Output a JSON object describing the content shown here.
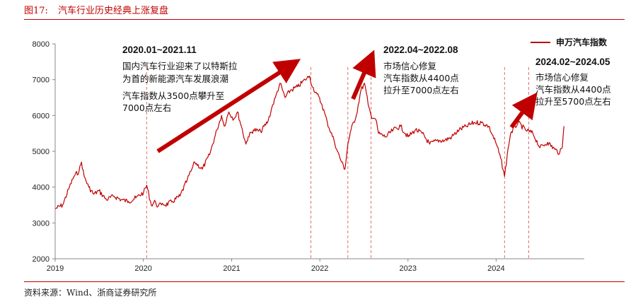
{
  "figure": {
    "number": "图17:",
    "title": "汽车行业历史经典上涨复盘",
    "source": "资料来源：Wind、浙商证券研究所"
  },
  "colors": {
    "line": "#c00000",
    "arrow": "#c00000",
    "axis": "#888888",
    "text": "#222222"
  },
  "chart_data": {
    "type": "line",
    "title": "",
    "xlabel": "",
    "ylabel": "",
    "ylim": [
      2000,
      8000
    ],
    "yticks": [
      2000,
      3000,
      4000,
      5000,
      6000,
      7000,
      8000
    ],
    "xlim": [
      "2019-01-01",
      "2024-12-31"
    ],
    "xticks": [
      "2019",
      "2020",
      "2021",
      "2022",
      "2023",
      "2024"
    ],
    "grid": false,
    "legend_position": "top-right",
    "series": [
      {
        "name": "申万汽车指数",
        "x": [
          "2019-01-02",
          "2019-02-01",
          "2019-03-01",
          "2019-03-20",
          "2019-04-10",
          "2019-04-20",
          "2019-05-01",
          "2019-05-20",
          "2019-06-10",
          "2019-07-01",
          "2019-08-01",
          "2019-09-01",
          "2019-10-01",
          "2019-11-01",
          "2019-12-01",
          "2020-01-02",
          "2020-01-15",
          "2020-02-03",
          "2020-02-20",
          "2020-03-01",
          "2020-03-20",
          "2020-04-01",
          "2020-05-01",
          "2020-06-01",
          "2020-07-01",
          "2020-07-20",
          "2020-08-01",
          "2020-09-01",
          "2020-10-01",
          "2020-11-01",
          "2020-11-20",
          "2020-12-01",
          "2020-12-20",
          "2021-01-10",
          "2021-01-25",
          "2021-02-10",
          "2021-03-01",
          "2021-03-10",
          "2021-04-01",
          "2021-05-01",
          "2021-06-01",
          "2021-06-20",
          "2021-07-01",
          "2021-07-20",
          "2021-08-10",
          "2021-09-01",
          "2021-10-01",
          "2021-11-01",
          "2021-11-20",
          "2021-12-01",
          "2021-12-20",
          "2022-01-10",
          "2022-02-01",
          "2022-03-01",
          "2022-03-15",
          "2022-04-01",
          "2022-04-15",
          "2022-04-27",
          "2022-05-10",
          "2022-06-01",
          "2022-06-20",
          "2022-07-05",
          "2022-07-20",
          "2022-08-01",
          "2022-08-20",
          "2022-09-01",
          "2022-10-01",
          "2022-11-01",
          "2022-12-01",
          "2023-01-01",
          "2023-02-01",
          "2023-03-01",
          "2023-04-01",
          "2023-05-01",
          "2023-06-01",
          "2023-07-01",
          "2023-08-01",
          "2023-09-01",
          "2023-10-01",
          "2023-11-01",
          "2023-12-01",
          "2024-01-02",
          "2024-01-20",
          "2024-02-05",
          "2024-02-20",
          "2024-03-01",
          "2024-04-01",
          "2024-05-01",
          "2024-06-01",
          "2024-07-01",
          "2024-08-01",
          "2024-09-01",
          "2024-09-20",
          "2024-10-01",
          "2024-10-08"
        ],
        "values": [
          3400,
          3500,
          4000,
          4300,
          4450,
          4700,
          4300,
          4000,
          3800,
          3900,
          3650,
          3750,
          3650,
          3600,
          3700,
          3850,
          4050,
          3500,
          3600,
          3450,
          3550,
          3500,
          3600,
          3750,
          4200,
          4500,
          4700,
          4500,
          4900,
          5600,
          6000,
          5700,
          6100,
          5900,
          6100,
          5700,
          5200,
          5400,
          5600,
          5550,
          5850,
          6300,
          6500,
          6900,
          6500,
          6700,
          6800,
          7000,
          7100,
          6800,
          6600,
          6300,
          5800,
          5300,
          5000,
          4700,
          4500,
          5200,
          5600,
          6000,
          6700,
          6900,
          6300,
          6000,
          5900,
          5500,
          5400,
          5600,
          5700,
          5400,
          5600,
          5500,
          5200,
          5300,
          5300,
          5400,
          5600,
          5700,
          5800,
          5800,
          5700,
          5200,
          4800,
          4300,
          5100,
          5500,
          5800,
          5600,
          5500,
          5100,
          5250,
          5050,
          4950,
          5100,
          5700
        ]
      }
    ],
    "vlines": [
      "2020-01-15",
      "2021-11-25",
      "2022-04-27",
      "2022-08-01",
      "2024-02-05",
      "2024-05-15"
    ],
    "annotations": [
      {
        "heading": "2020.01~2021.11",
        "lines": [
          "国内汽车行业迎来了以特斯拉",
          "为首的新能源汽车发展浪潮",
          "汽车指数从3500点攀升至",
          "7000点左右"
        ]
      },
      {
        "heading": "2022.04~2022.08",
        "lines": [
          "市场信心修复",
          "汽车指数从4400点",
          "拉升至7000点左右"
        ]
      },
      {
        "heading": "2024.02~2024.05",
        "lines": [
          "市场信心修复",
          "汽车指数从4400点",
          "拉升至5700点左右"
        ]
      }
    ]
  }
}
